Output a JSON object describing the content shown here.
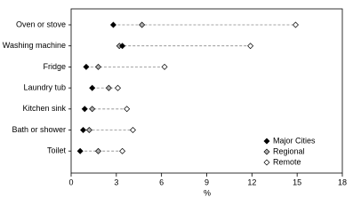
{
  "chart_data": {
    "type": "dot",
    "categories": [
      "Oven or stove",
      "Washing machine",
      "Fridge",
      "Laundry tub",
      "Kitchen sink",
      "Bath or shower",
      "Toilet"
    ],
    "series": [
      {
        "name": "Major Cities",
        "color": "#000000",
        "values": [
          2.8,
          3.4,
          1.0,
          1.4,
          0.9,
          0.8,
          0.6
        ]
      },
      {
        "name": "Regional",
        "color": "#b0b0b0",
        "values": [
          4.7,
          3.2,
          1.8,
          2.5,
          1.4,
          1.2,
          1.8
        ]
      },
      {
        "name": "Remote",
        "color": "#ffffff",
        "values": [
          14.9,
          11.9,
          6.2,
          3.1,
          3.7,
          4.1,
          3.4
        ]
      }
    ],
    "x_label": "%",
    "xlim": [
      0,
      18
    ],
    "xticks": [
      0,
      3,
      6,
      9,
      12,
      15,
      18
    ],
    "legend": "lower right"
  }
}
